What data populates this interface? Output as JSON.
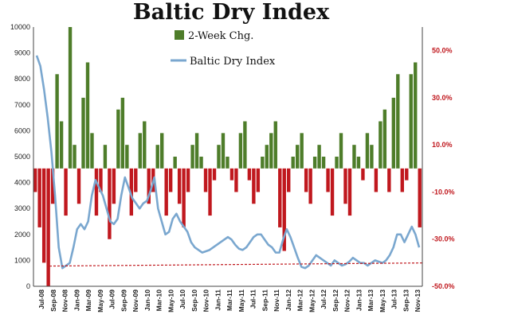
{
  "chart_data": {
    "type": "bar",
    "title": "Baltic Dry Index",
    "xlabel": "",
    "ylabel": "",
    "grid": false,
    "legend_position": "top-center",
    "x_ticks": [
      "Jul-08",
      "Sep-08",
      "Nov-08",
      "Jan-09",
      "Mar-09",
      "May-09",
      "Jul-09",
      "Sep-09",
      "Nov-09",
      "Jan-10",
      "Mar-10",
      "May-10",
      "Jul-10",
      "Sep-10",
      "Nov-10",
      "Jan-11",
      "Mar-11",
      "May-11",
      "Jul-11",
      "Sep-11",
      "Nov-11",
      "Jan-12",
      "Mar-12",
      "May-12",
      "Jul-12",
      "Sep-12",
      "Nov-12",
      "Jan-13",
      "Mar-13",
      "May-13",
      "Jul-13",
      "Sep-13",
      "Nov-13"
    ],
    "y_left": {
      "range": [
        0,
        10000
      ],
      "ticks": [
        "0",
        "1000",
        "2000",
        "3000",
        "4000",
        "5000",
        "6000",
        "7000",
        "8000",
        "9000",
        "10000"
      ]
    },
    "y_right": {
      "range": [
        -50,
        60
      ],
      "ticks": [
        "50.0%",
        "30.0%",
        "10.0%",
        "-10.0%",
        "-30.0%",
        "-50.0%"
      ],
      "tick_values": [
        50,
        30,
        10,
        -10,
        -30,
        -50
      ]
    },
    "series": [
      {
        "name": "2-Week Chg.",
        "type": "bar",
        "axis": "right",
        "positive_color": "#4e7d2a",
        "negative_color": "#c0181e",
        "values": [
          -10,
          -25,
          -40,
          -50,
          -15,
          40,
          20,
          -20,
          60,
          10,
          -15,
          30,
          45,
          15,
          -20,
          -10,
          10,
          -30,
          -15,
          25,
          30,
          10,
          -20,
          -10,
          15,
          20,
          -15,
          -10,
          10,
          15,
          -20,
          -10,
          5,
          -15,
          -25,
          -10,
          10,
          15,
          5,
          -10,
          -20,
          -5,
          10,
          15,
          5,
          -5,
          -10,
          15,
          20,
          -5,
          -15,
          -10,
          5,
          10,
          15,
          20,
          -25,
          -35,
          -10,
          5,
          10,
          15,
          -10,
          -15,
          5,
          10,
          5,
          -10,
          -20,
          5,
          15,
          -15,
          -20,
          10,
          5,
          -5,
          15,
          10,
          -10,
          20,
          25,
          -10,
          30,
          40,
          -10,
          -5,
          40,
          45,
          -25
        ]
      },
      {
        "name": "Baltic Dry Index",
        "type": "line",
        "axis": "left",
        "color": "#7aa7cf",
        "values": [
          8900,
          8500,
          7600,
          6500,
          5200,
          3500,
          1500,
          700,
          800,
          900,
          1500,
          2200,
          2400,
          2200,
          2500,
          3500,
          4100,
          3800,
          3500,
          3000,
          2500,
          2400,
          2600,
          3500,
          4200,
          3800,
          3400,
          3200,
          3000,
          3200,
          3300,
          3700,
          4200,
          3000,
          2500,
          2000,
          2100,
          2600,
          2800,
          2500,
          2300,
          2100,
          1700,
          1500,
          1400,
          1300,
          1350,
          1400,
          1500,
          1600,
          1700,
          1800,
          1900,
          1800,
          1600,
          1450,
          1400,
          1500,
          1700,
          1900,
          2000,
          2000,
          1800,
          1600,
          1500,
          1300,
          1300,
          1800,
          2200,
          1900,
          1500,
          1100,
          750,
          700,
          800,
          1000,
          1200,
          1100,
          1000,
          900,
          800,
          1000,
          900,
          800,
          850,
          950,
          1100,
          1000,
          900,
          900,
          800,
          900,
          1000,
          950,
          900,
          1000,
          1200,
          1500,
          2000,
          2000,
          1700,
          2000,
          2300,
          2000,
          1500
        ]
      },
      {
        "name": "",
        "type": "line",
        "axis": "left",
        "style": "dashed",
        "color": "#c0181e",
        "values": [
          780,
          900
        ]
      }
    ]
  },
  "legend": {
    "bar_label": "2-Week Chg.",
    "line_label": "Baltic Dry Index",
    "bar_color": "#4e7d2a",
    "line_color": "#7aa7cf"
  }
}
